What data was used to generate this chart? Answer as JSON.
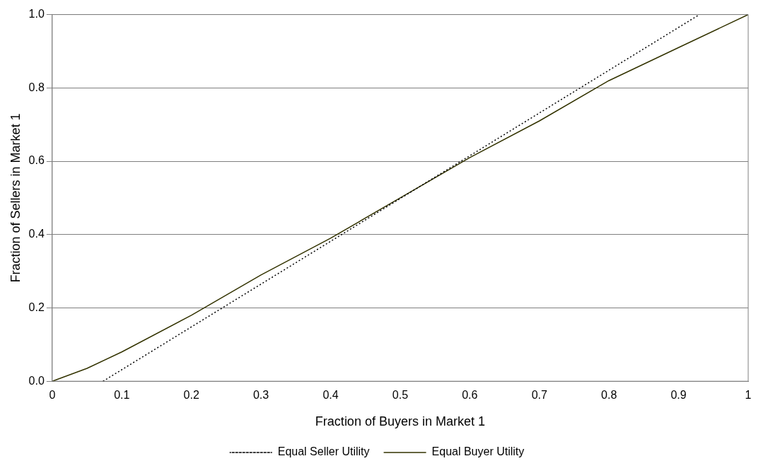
{
  "chart_data": {
    "type": "line",
    "xlabel": "Fraction of Buyers in Market 1",
    "ylabel": "Fraction of Sellers in Market 1",
    "xlim": [
      0,
      1
    ],
    "ylim": [
      0,
      1
    ],
    "xticks": [
      0,
      0.1,
      0.2,
      0.3,
      0.4,
      0.5,
      0.6,
      0.7,
      0.8,
      0.9,
      1
    ],
    "yticks": [
      {
        "value": 0,
        "label": "0.0"
      },
      0.2,
      0.4,
      0.6,
      0.8,
      {
        "value": 1,
        "label": "1.0"
      }
    ],
    "grid": "y",
    "legend": "bottom",
    "marker": "none",
    "series": [
      {
        "name": "Equal Seller Utility",
        "color": "#000000",
        "line_style": "dotted",
        "x": [
          0.073,
          0.93
        ],
        "values": [
          0,
          1
        ]
      },
      {
        "name": "Equal Buyer Utility",
        "color": "#333300",
        "line_style": "solid",
        "x": [
          0,
          0.05,
          0.1,
          0.2,
          0.3,
          0.4,
          0.5,
          0.6,
          0.7,
          0.8,
          0.9,
          1
        ],
        "values": [
          0,
          0.035,
          0.08,
          0.18,
          0.29,
          0.39,
          0.5,
          0.61,
          0.71,
          0.82,
          0.91,
          1
        ]
      }
    ]
  }
}
